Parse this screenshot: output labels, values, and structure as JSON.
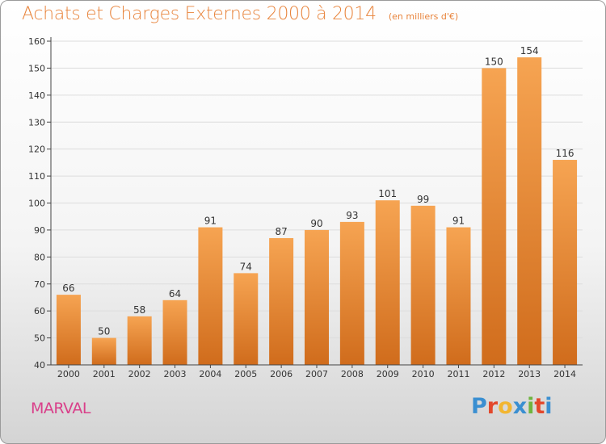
{
  "header": {
    "title": "Achats et Charges Externes 2000 à 2014",
    "subtitle": "(en milliers d'€)"
  },
  "footer": {
    "commune": "MARVAL",
    "logo_text": "Proxiti",
    "logo_colors": [
      "#3a8fd1",
      "#e3482c",
      "#f2b632",
      "#3a8fd1",
      "#6fb43f",
      "#e3482c",
      "#3a8fd1"
    ]
  },
  "colors": {
    "accent": "#e8843c",
    "bar_light": "#f6a452",
    "bar_dark": "#d06c1c",
    "commune": "#d9408a",
    "axis": "#444444",
    "grid": "#dddddd"
  },
  "chart_data": {
    "type": "bar",
    "title": "Achats et Charges Externes 2000 à 2014",
    "subtitle": "(en milliers d'€)",
    "xlabel": "",
    "ylabel": "",
    "categories": [
      "2000",
      "2001",
      "2002",
      "2003",
      "2004",
      "2005",
      "2006",
      "2007",
      "2008",
      "2009",
      "2010",
      "2011",
      "2012",
      "2013",
      "2014"
    ],
    "values": [
      66,
      50,
      58,
      64,
      91,
      74,
      87,
      90,
      93,
      101,
      99,
      91,
      150,
      154,
      116
    ],
    "ylim": [
      40,
      160
    ],
    "yticks": [
      40,
      50,
      60,
      70,
      80,
      90,
      100,
      110,
      120,
      130,
      140,
      150,
      160
    ],
    "grid": true,
    "data_labels": true
  }
}
